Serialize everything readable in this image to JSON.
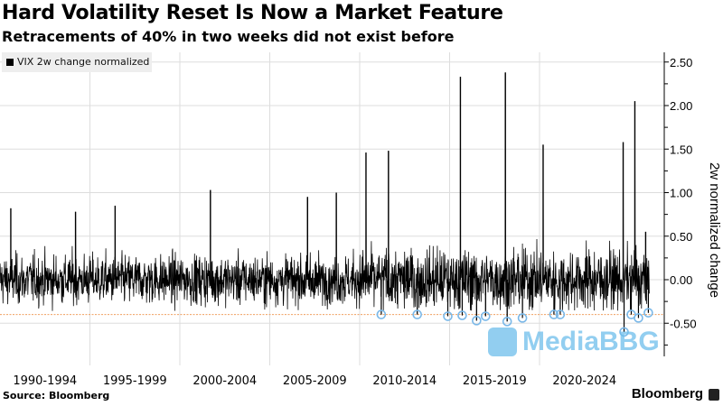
{
  "header": {
    "title": "Hard Volatility Reset Is Now a Market Feature",
    "subtitle": "Retracements of 40% in two weeks did not exist before"
  },
  "footer": {
    "source": "Source: Bloomberg",
    "brand": "Bloomberg"
  },
  "watermark": "MediaBBG",
  "colors": {
    "series": "#000000",
    "threshold": "#f0a060",
    "markers": "#7ab8e8",
    "grid": "#dddddd"
  },
  "chart_data": {
    "type": "line",
    "title": "Hard Volatility Reset Is Now a Market Feature",
    "subtitle": "Retracements of 40% in two weeks did not exist before",
    "legend": [
      "VIX 2w change normalized"
    ],
    "legend_position": "top-left",
    "ylabel": "2w normalized change",
    "ylim": [
      -0.85,
      2.6
    ],
    "xlim": [
      1990,
      2026.2
    ],
    "yticks": [
      {
        "value": 2.5,
        "label": "2.50"
      },
      {
        "value": 2.0,
        "label": "2.00"
      },
      {
        "value": 1.5,
        "label": "1.50"
      },
      {
        "value": 1.0,
        "label": "1.00"
      },
      {
        "value": 0.5,
        "label": "0.50"
      },
      {
        "value": 0.0,
        "label": "0.00"
      },
      {
        "value": -0.5,
        "label": "-0.50"
      }
    ],
    "xtick_labels": [
      {
        "center": 1992.5,
        "label": "1990-1994"
      },
      {
        "center": 1997.5,
        "label": "1995-1999"
      },
      {
        "center": 2002.5,
        "label": "2000-2004"
      },
      {
        "center": 2007.5,
        "label": "2005-2009"
      },
      {
        "center": 2012.5,
        "label": "2010-2014"
      },
      {
        "center": 2017.5,
        "label": "2015-2019"
      },
      {
        "center": 2022.5,
        "label": "2020-2024"
      }
    ],
    "threshold": -0.4,
    "noise_std": 0.14,
    "spikes": [
      {
        "x": 1990.6,
        "y": 0.82
      },
      {
        "x": 1994.2,
        "y": 0.78
      },
      {
        "x": 1996.4,
        "y": 0.85
      },
      {
        "x": 2001.7,
        "y": 1.03
      },
      {
        "x": 2007.1,
        "y": 0.95
      },
      {
        "x": 2008.7,
        "y": 1.0
      },
      {
        "x": 2010.35,
        "y": 1.46
      },
      {
        "x": 2011.6,
        "y": 1.48
      },
      {
        "x": 2015.6,
        "y": 2.33
      },
      {
        "x": 2018.1,
        "y": 2.38
      },
      {
        "x": 2020.2,
        "y": 1.55
      },
      {
        "x": 2024.65,
        "y": 1.58
      },
      {
        "x": 2025.3,
        "y": 2.05
      },
      {
        "x": 2025.9,
        "y": 0.55
      }
    ],
    "reset_events": [
      {
        "x": 2011.2,
        "y": -0.4
      },
      {
        "x": 2013.2,
        "y": -0.4
      },
      {
        "x": 2014.9,
        "y": -0.42
      },
      {
        "x": 2015.7,
        "y": -0.41
      },
      {
        "x": 2016.5,
        "y": -0.47
      },
      {
        "x": 2017.0,
        "y": -0.42
      },
      {
        "x": 2018.2,
        "y": -0.48
      },
      {
        "x": 2019.05,
        "y": -0.44
      },
      {
        "x": 2020.8,
        "y": -0.4
      },
      {
        "x": 2021.15,
        "y": -0.4
      },
      {
        "x": 2024.7,
        "y": -0.6
      },
      {
        "x": 2025.1,
        "y": -0.4
      },
      {
        "x": 2025.5,
        "y": -0.44
      },
      {
        "x": 2026.05,
        "y": -0.38
      }
    ]
  }
}
